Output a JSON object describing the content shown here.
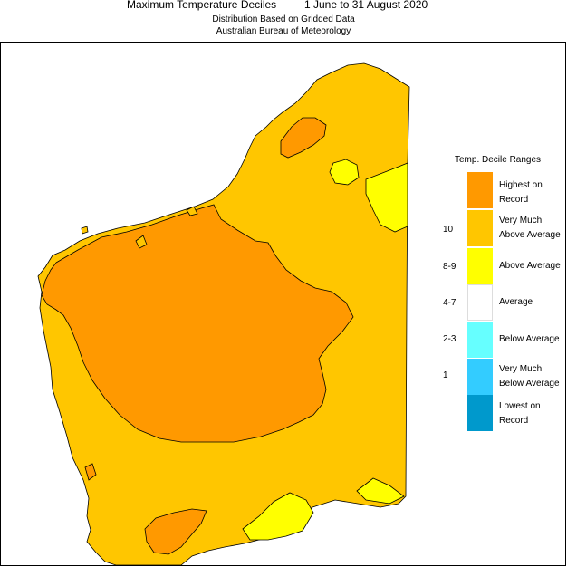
{
  "header": {
    "title": "Maximum Temperature Deciles",
    "period": "1 June to 31 August 2020",
    "subtitle1": "Distribution Based on Gridded Data",
    "subtitle2": "Australian Bureau of Meteorology"
  },
  "legend": {
    "title": "Temp. Decile Ranges",
    "items": [
      {
        "label_line1": "Highest on",
        "label_line2": "Record",
        "range": "",
        "color": "#FF9900"
      },
      {
        "label_line1": "Very Much",
        "label_line2": "Above Average",
        "range": "10",
        "color": "#FFC600"
      },
      {
        "label_line1": "Above Average",
        "label_line2": "",
        "range": "8-9",
        "color": "#FFFF00"
      },
      {
        "label_line1": "Average",
        "label_line2": "",
        "range": "4-7",
        "color": "#FFFFFF"
      },
      {
        "label_line1": "Below Average",
        "label_line2": "",
        "range": "2-3",
        "color": "#66FFFF"
      },
      {
        "label_line1": "Very Much",
        "label_line2": "Below Average",
        "range": "1",
        "color": "#33CCFF"
      },
      {
        "label_line1": "Lowest on",
        "label_line2": "Record",
        "range": "",
        "color": "#0099CC"
      }
    ]
  },
  "map": {
    "region_colors": {
      "very_much_above": "#FFC600",
      "highest_on_record": "#FF9900",
      "above_average": "#FFFF00"
    }
  }
}
